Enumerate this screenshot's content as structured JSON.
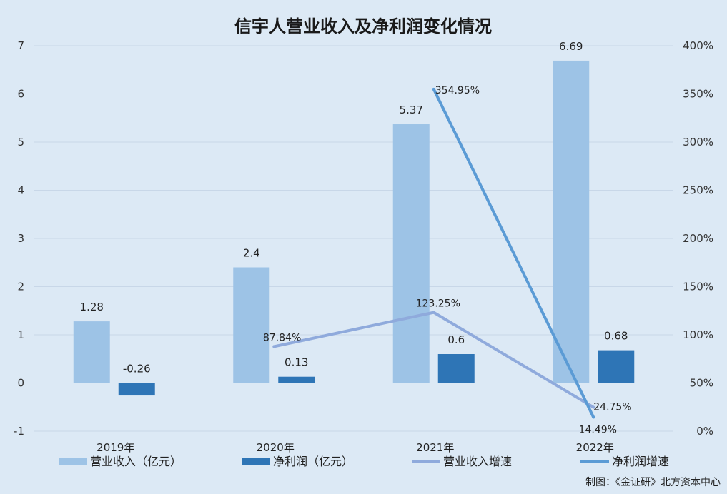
{
  "chart_data": {
    "type": "bar",
    "title": "信宇人营业收入及净利润变化情况",
    "categories": [
      "2019年",
      "2020年",
      "2021年",
      "2022年"
    ],
    "series": [
      {
        "name": "营业收入（亿元）",
        "kind": "bar",
        "axis": "left",
        "color": "#9dc3e6",
        "values": [
          1.28,
          2.4,
          5.37,
          6.69
        ],
        "labels": [
          "1.28",
          "2.4",
          "5.37",
          "6.69"
        ]
      },
      {
        "name": "净利润（亿元）",
        "kind": "bar",
        "axis": "left",
        "color": "#2e75b6",
        "values": [
          -0.26,
          0.13,
          0.6,
          0.68
        ],
        "labels": [
          "-0.26",
          "0.13",
          "0.6",
          "0.68"
        ]
      },
      {
        "name": "营业收入增速",
        "kind": "line",
        "axis": "right",
        "color": "#8faadc",
        "values": [
          null,
          87.84,
          123.25,
          24.75
        ],
        "labels": [
          "",
          "87.84%",
          "123.25%",
          "24.75%"
        ]
      },
      {
        "name": "净利润增速",
        "kind": "line",
        "axis": "right",
        "color": "#5b9bd5",
        "values": [
          null,
          null,
          354.95,
          14.49
        ],
        "labels": [
          "",
          "",
          "354.95%",
          "14.49%"
        ]
      }
    ],
    "y_left": {
      "min": -1,
      "max": 7,
      "ticks": [
        "-1",
        "0",
        "1",
        "2",
        "3",
        "4",
        "5",
        "6",
        "7"
      ]
    },
    "y_right": {
      "min": 0,
      "max": 400,
      "ticks": [
        "0%",
        "50%",
        "100%",
        "150%",
        "200%",
        "250%",
        "300%",
        "350%",
        "400%"
      ]
    },
    "grid": true,
    "legend_position": "bottom",
    "source": "制图：《金证研》北方资本中心"
  }
}
